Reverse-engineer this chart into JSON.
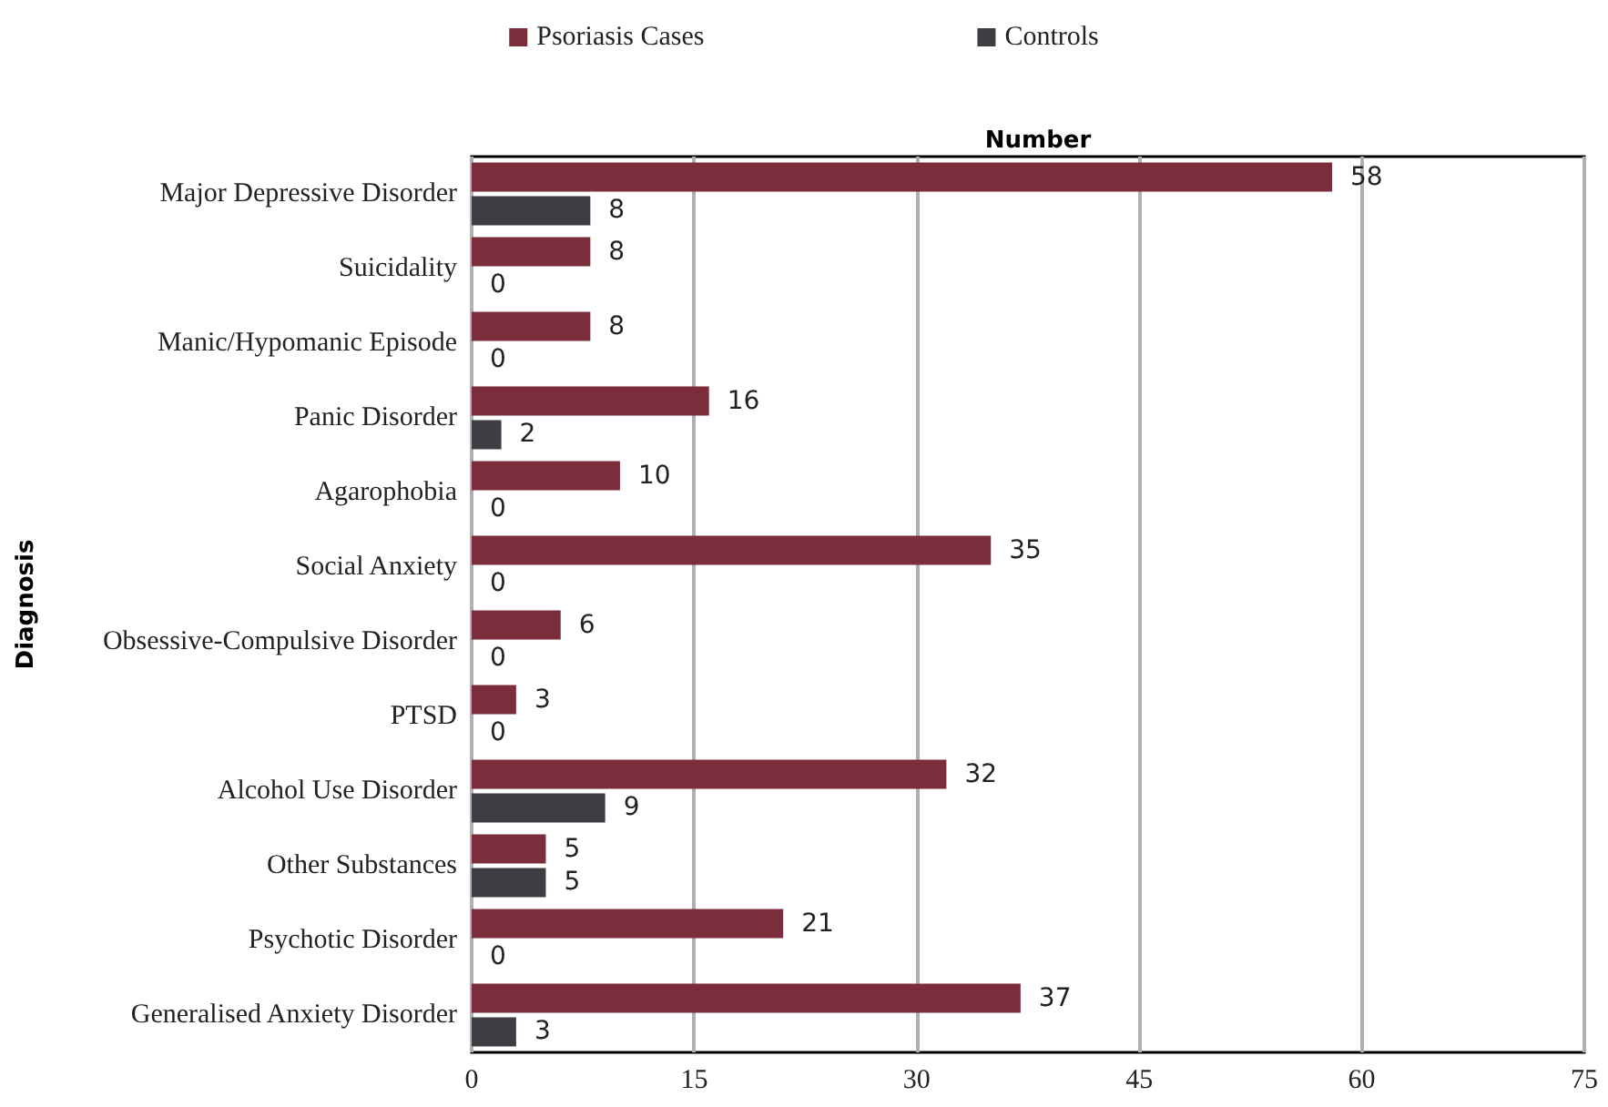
{
  "chart_data": {
    "type": "bar",
    "orientation": "horizontal",
    "xlabel": "Number",
    "ylabel": "Diagnosis",
    "categories": [
      "Major Depressive Disorder",
      "Suicidality",
      "Manic/Hypomanic Episode",
      "Panic Disorder",
      "Agarophobia",
      "Social Anxiety",
      "Obsessive-Compulsive Disorder",
      "PTSD",
      "Alcohol Use Disorder",
      "Other Substances",
      "Psychotic Disorder",
      "Generalised Anxiety Disorder"
    ],
    "series": [
      {
        "name": "Psoriasis Cases",
        "color": "#7b2d3b",
        "values": [
          58,
          8,
          8,
          16,
          10,
          35,
          6,
          3,
          32,
          5,
          21,
          37
        ]
      },
      {
        "name": "Controls",
        "color": "#3c3e43",
        "values": [
          8,
          0,
          0,
          2,
          0,
          0,
          0,
          0,
          9,
          5,
          0,
          3
        ]
      }
    ],
    "xlim": [
      0,
      75
    ],
    "xticks": [
      0,
      15,
      30,
      45,
      60,
      75
    ],
    "grid": "x",
    "legend": "top",
    "data_labels": true
  }
}
